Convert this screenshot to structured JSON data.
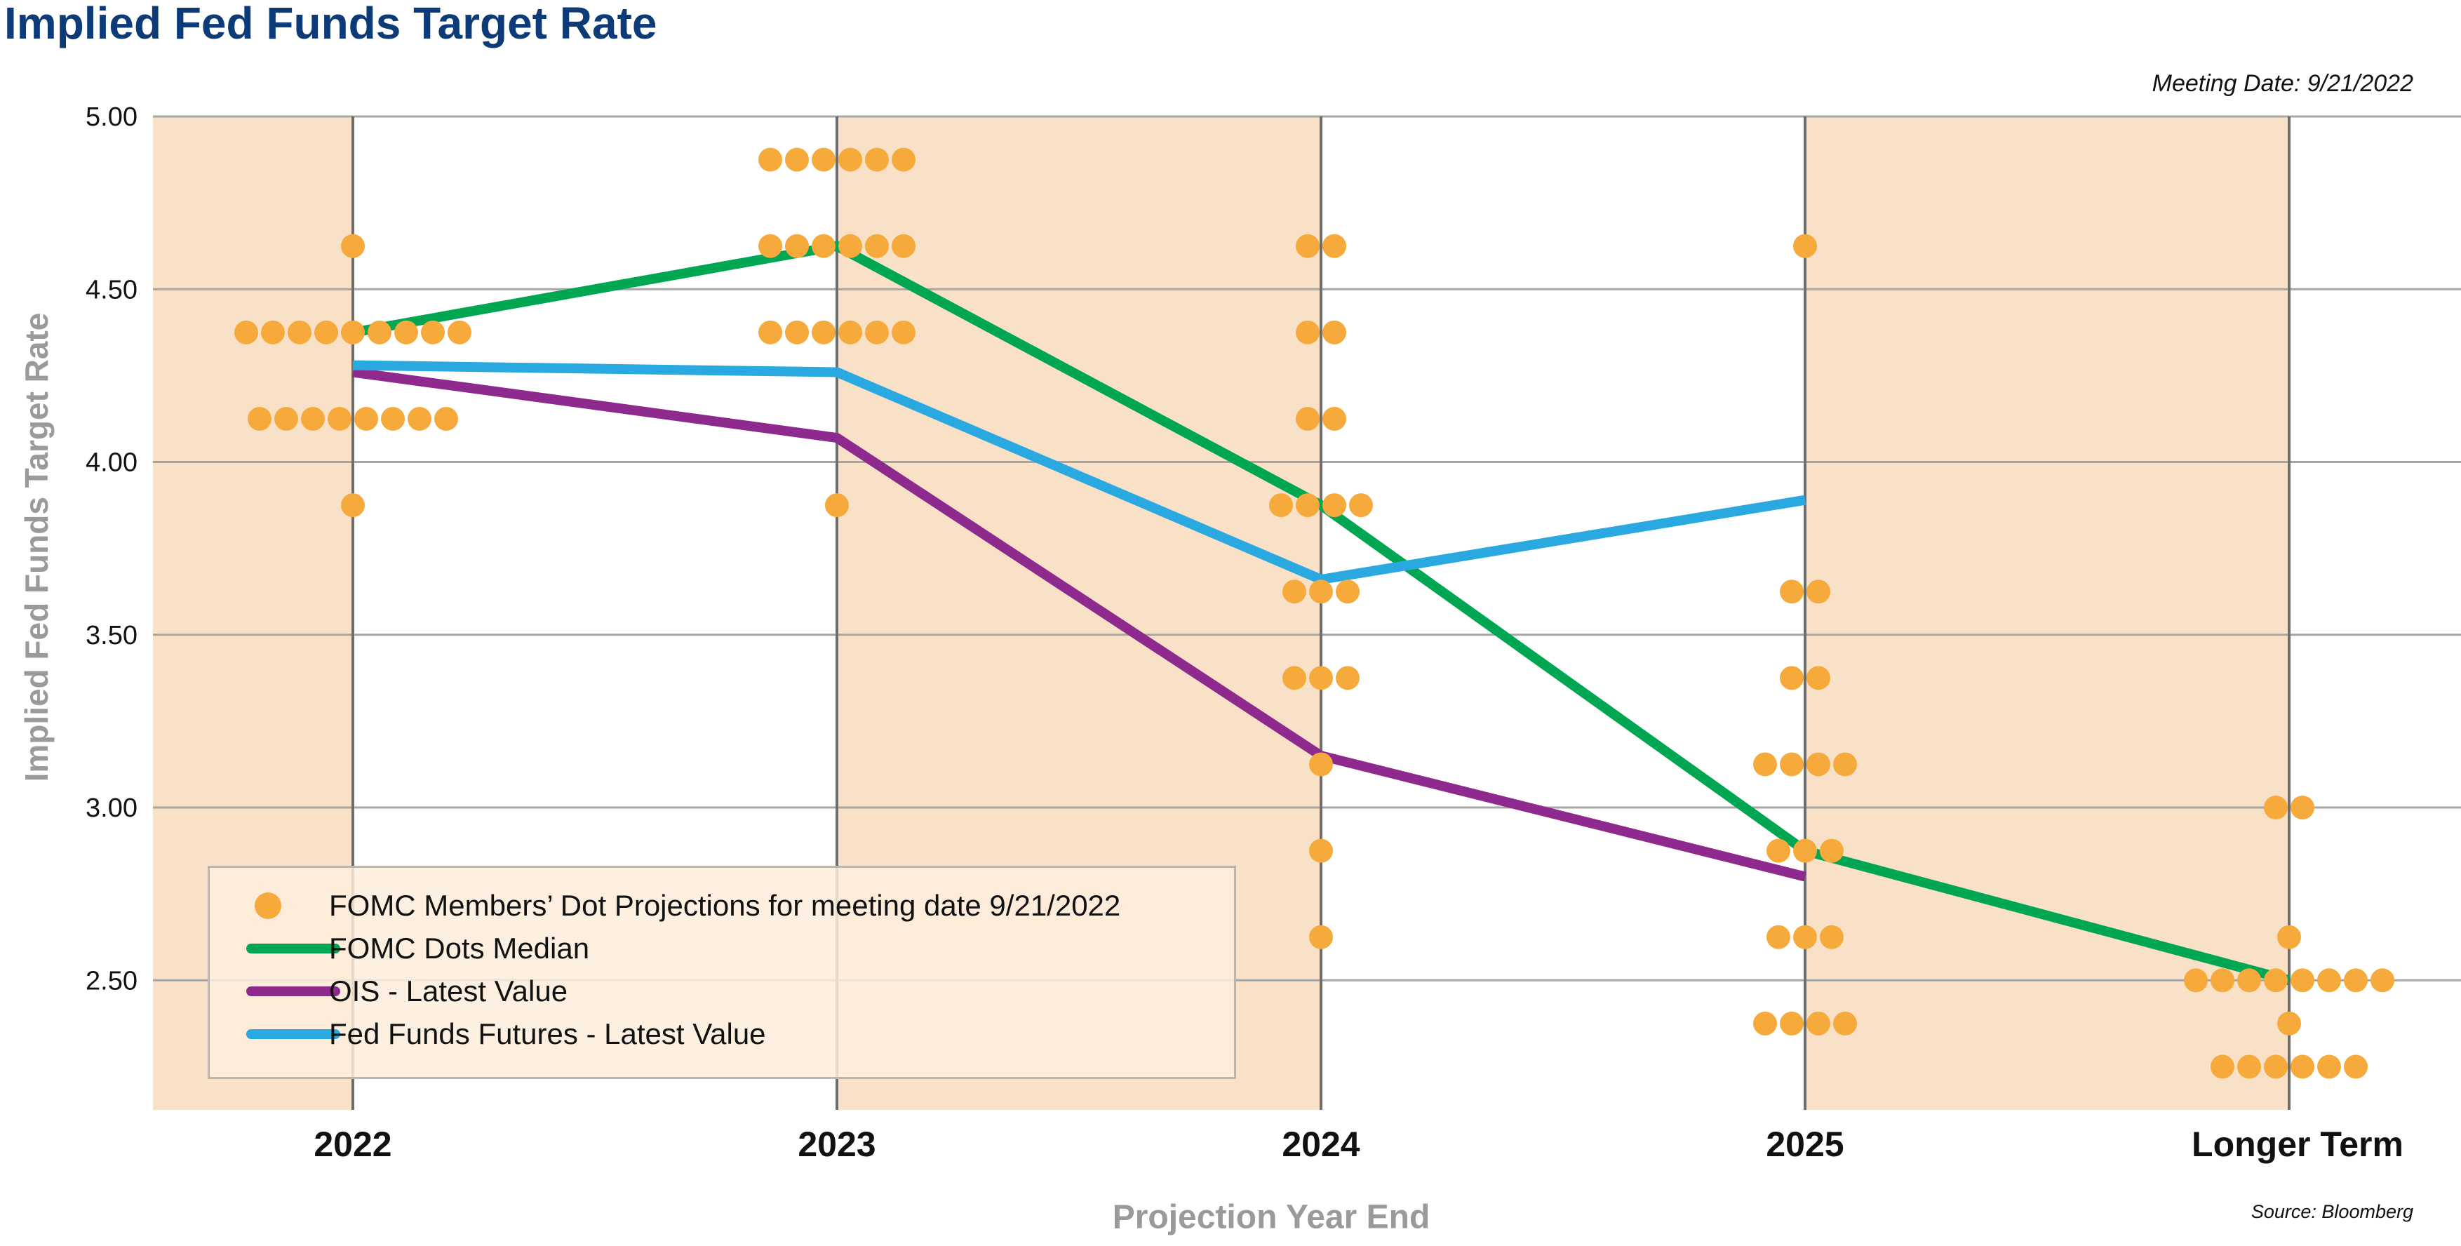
{
  "title": "Implied Fed Funds Target Rate",
  "meeting_date": "Meeting Date: 9/21/2022",
  "source": "Source: Bloomberg",
  "colors": {
    "title": "#0d3b78",
    "band": "#f9e1c8",
    "dots": "#f6aa3c",
    "median": "#00a651",
    "ois": "#8e2a8e",
    "futures": "#29a9e0",
    "grid": "#a6a6a6",
    "vline": "#6d6d6d"
  },
  "legend": {
    "position": "bottom-left",
    "items": [
      {
        "label": "FOMC Members’ Dot Projections for meeting date 9/21/2022",
        "kind": "dot",
        "color": "#f6aa3c"
      },
      {
        "label": "FOMC Dots Median",
        "kind": "line",
        "color": "#00a651"
      },
      {
        "label": "OIS - Latest Value",
        "kind": "line",
        "color": "#8e2a8e"
      },
      {
        "label": "Fed Funds Futures - Latest Value",
        "kind": "line",
        "color": "#29a9e0"
      }
    ]
  },
  "chart_data": {
    "type": "scatter",
    "title": "Implied Fed Funds Target Rate",
    "xlabel": "Projection Year End",
    "ylabel": "Implied Fed Funds Target Rate",
    "categories": [
      "2022",
      "2023",
      "2024",
      "2025",
      "Longer Term"
    ],
    "ylim": [
      2.125,
      5.0
    ],
    "yticks": [
      "5.00",
      "4.50",
      "4.00",
      "3.50",
      "3.00",
      "2.50"
    ],
    "ytick_values": [
      5.0,
      4.5,
      4.0,
      3.5,
      3.0,
      2.5
    ],
    "grid": true,
    "dots": [
      {
        "category": "2022",
        "rates": [
          {
            "y": 4.625,
            "count": 1
          },
          {
            "y": 4.375,
            "count": 9
          },
          {
            "y": 4.125,
            "count": 8
          },
          {
            "y": 3.875,
            "count": 1
          }
        ]
      },
      {
        "category": "2023",
        "rates": [
          {
            "y": 4.875,
            "count": 6
          },
          {
            "y": 4.625,
            "count": 6
          },
          {
            "y": 4.375,
            "count": 6
          },
          {
            "y": 3.875,
            "count": 1
          }
        ]
      },
      {
        "category": "2024",
        "rates": [
          {
            "y": 4.625,
            "count": 2
          },
          {
            "y": 4.375,
            "count": 2
          },
          {
            "y": 4.125,
            "count": 2
          },
          {
            "y": 3.875,
            "count": 4
          },
          {
            "y": 3.625,
            "count": 3
          },
          {
            "y": 3.375,
            "count": 3
          },
          {
            "y": 3.125,
            "count": 1
          },
          {
            "y": 2.875,
            "count": 1
          },
          {
            "y": 2.625,
            "count": 1
          }
        ]
      },
      {
        "category": "2025",
        "rates": [
          {
            "y": 4.625,
            "count": 1
          },
          {
            "y": 3.625,
            "count": 2
          },
          {
            "y": 3.375,
            "count": 2
          },
          {
            "y": 3.125,
            "count": 4
          },
          {
            "y": 2.875,
            "count": 3
          },
          {
            "y": 2.625,
            "count": 3
          },
          {
            "y": 2.375,
            "count": 4
          }
        ]
      },
      {
        "category": "Longer Term",
        "rates": [
          {
            "y": 3.0,
            "count": 2
          },
          {
            "y": 2.625,
            "count": 1
          },
          {
            "y": 2.5,
            "count": 8
          },
          {
            "y": 2.375,
            "count": 1
          },
          {
            "y": 2.25,
            "count": 6
          }
        ]
      }
    ],
    "series": [
      {
        "name": "FOMC Dots Median",
        "points": [
          {
            "category": "2022",
            "y": 4.375
          },
          {
            "category": "2023",
            "y": 4.625
          },
          {
            "category": "2024",
            "y": 3.875
          },
          {
            "category": "2025",
            "y": 2.875
          },
          {
            "category": "Longer Term",
            "y": 2.5
          }
        ]
      },
      {
        "name": "OIS - Latest Value",
        "points": [
          {
            "category": "2022",
            "y": 4.26
          },
          {
            "category": "2023",
            "y": 4.07
          },
          {
            "category": "2024",
            "y": 3.15
          },
          {
            "category": "2025",
            "y": 2.8
          }
        ]
      },
      {
        "name": "Fed Funds Futures - Latest Value",
        "points": [
          {
            "category": "2022",
            "y": 4.28
          },
          {
            "category": "2023",
            "y": 4.26
          },
          {
            "category": "2024",
            "y": 3.66
          },
          {
            "category": "2025",
            "y": 3.89
          }
        ]
      }
    ]
  }
}
